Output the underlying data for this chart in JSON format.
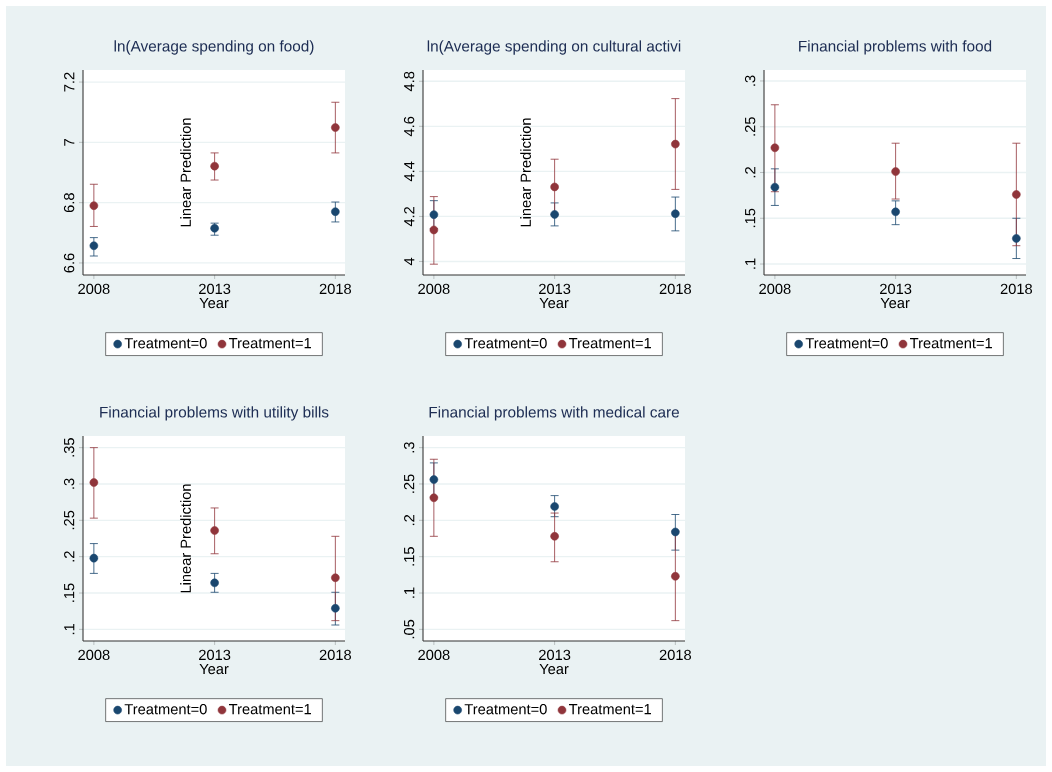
{
  "chart_data": [
    {
      "type": "scatter",
      "title": "ln(Average spending on food)",
      "xlabel": "Year",
      "ylabel": "Linear Prediction",
      "x": [
        2008,
        2013,
        2018
      ],
      "xlim": [
        2007.55,
        2018.4
      ],
      "xticks": [
        2008,
        2013,
        2018
      ],
      "ylim": [
        6.56,
        7.24
      ],
      "yticks": [
        6.6,
        6.8,
        7,
        7.2
      ],
      "grid": "y",
      "legend": "bottom",
      "marker": "circle",
      "series": [
        {
          "name": "Treatment=0",
          "color": "#1a476f",
          "values": [
            6.657,
            6.715,
            6.77
          ],
          "errors": [
            [
              6.623,
              6.684
            ],
            [
              6.692,
              6.732
            ],
            [
              6.736,
              6.802
            ]
          ]
        },
        {
          "name": "Treatment=1",
          "color": "#90353b",
          "values": [
            6.79,
            6.921,
            7.049
          ],
          "errors": [
            [
              6.721,
              6.861
            ],
            [
              6.875,
              6.965
            ],
            [
              6.965,
              7.133
            ]
          ]
        }
      ]
    },
    {
      "type": "scatter",
      "title": "ln(Average spending on cultural activi",
      "xlabel": "Year",
      "ylabel": "Linear Prediction",
      "x": [
        2008,
        2013,
        2018
      ],
      "xlim": [
        2007.55,
        2018.4
      ],
      "xticks": [
        2008,
        2013,
        2018
      ],
      "ylim": [
        3.94,
        4.85
      ],
      "yticks": [
        4,
        4.2,
        4.4,
        4.6,
        4.8
      ],
      "grid": "y",
      "legend": "bottom",
      "marker": "circle",
      "series": [
        {
          "name": "Treatment=0",
          "color": "#1a476f",
          "values": [
            4.208,
            4.209,
            4.212
          ],
          "errors": [
            [
              4.146,
              4.27
            ],
            [
              4.158,
              4.26
            ],
            [
              4.136,
              4.286
            ]
          ]
        },
        {
          "name": "Treatment=1",
          "color": "#90353b",
          "values": [
            4.14,
            4.331,
            4.521
          ],
          "errors": [
            [
              3.988,
              4.288
            ],
            [
              4.208,
              4.454
            ],
            [
              4.32,
              4.723
            ]
          ]
        }
      ]
    },
    {
      "type": "scatter",
      "title": "Financial problems with food",
      "xlabel": "Year",
      "x": [
        2008,
        2013,
        2018
      ],
      "xlim": [
        2007.55,
        2018.4
      ],
      "xticks": [
        2008,
        2013,
        2018
      ],
      "ylim": [
        0.088,
        0.312
      ],
      "yticks": [
        {
          "value": 0.1,
          "label": ".1"
        },
        {
          "value": 0.15,
          "label": ".15"
        },
        {
          "value": 0.2,
          "label": ".2"
        },
        {
          "value": 0.25,
          "label": ".25"
        },
        {
          "value": 0.3,
          "label": ".3"
        }
      ],
      "grid": "y",
      "legend": "bottom",
      "marker": "circle",
      "series": [
        {
          "name": "Treatment=0",
          "color": "#1a476f",
          "values": [
            0.184,
            0.157,
            0.128
          ],
          "errors": [
            [
              0.164,
              0.204
            ],
            [
              0.143,
              0.169
            ],
            [
              0.106,
              0.15
            ]
          ]
        },
        {
          "name": "Treatment=1",
          "color": "#90353b",
          "values": [
            0.227,
            0.201,
            0.176
          ],
          "errors": [
            [
              0.179,
              0.274
            ],
            [
              0.171,
              0.232
            ],
            [
              0.12,
              0.232
            ]
          ]
        }
      ]
    },
    {
      "type": "scatter",
      "title": "Financial problems with utility bills",
      "xlabel": "Year",
      "ylabel": "Linear Prediction",
      "x": [
        2008,
        2013,
        2018
      ],
      "xlim": [
        2007.55,
        2018.4
      ],
      "xticks": [
        2008,
        2013,
        2018
      ],
      "ylim": [
        0.084,
        0.366
      ],
      "yticks": [
        {
          "value": 0.1,
          "label": ".1"
        },
        {
          "value": 0.15,
          "label": ".15"
        },
        {
          "value": 0.2,
          "label": ".2"
        },
        {
          "value": 0.25,
          "label": ".25"
        },
        {
          "value": 0.3,
          "label": ".3"
        },
        {
          "value": 0.35,
          "label": ".35"
        }
      ],
      "grid": "y",
      "legend": "bottom",
      "marker": "circle",
      "series": [
        {
          "name": "Treatment=0",
          "color": "#1a476f",
          "values": [
            0.198,
            0.164,
            0.129
          ],
          "errors": [
            [
              0.177,
              0.218
            ],
            [
              0.151,
              0.177
            ],
            [
              0.106,
              0.151
            ]
          ]
        },
        {
          "name": "Treatment=1",
          "color": "#90353b",
          "values": [
            0.302,
            0.236,
            0.171
          ],
          "errors": [
            [
              0.253,
              0.35
            ],
            [
              0.204,
              0.267
            ],
            [
              0.112,
              0.228
            ]
          ]
        }
      ]
    },
    {
      "type": "scatter",
      "title": "Financial problems with medical care",
      "xlabel": "Year",
      "x": [
        2008,
        2013,
        2018
      ],
      "xlim": [
        2007.55,
        2018.4
      ],
      "xticks": [
        2008,
        2013,
        2018
      ],
      "ylim": [
        0.034,
        0.316
      ],
      "yticks": [
        {
          "value": 0.05,
          "label": ".05"
        },
        {
          "value": 0.1,
          "label": ".1"
        },
        {
          "value": 0.15,
          "label": ".15"
        },
        {
          "value": 0.2,
          "label": ".2"
        },
        {
          "value": 0.25,
          "label": ".25"
        },
        {
          "value": 0.3,
          "label": ".3"
        }
      ],
      "grid": "y",
      "legend": "bottom",
      "marker": "circle",
      "series": [
        {
          "name": "Treatment=0",
          "color": "#1a476f",
          "values": [
            0.256,
            0.219,
            0.184
          ],
          "errors": [
            [
              0.232,
              0.279
            ],
            [
              0.205,
              0.234
            ],
            [
              0.159,
              0.208
            ]
          ]
        },
        {
          "name": "Treatment=1",
          "color": "#90353b",
          "values": [
            0.231,
            0.178,
            0.123
          ],
          "errors": [
            [
              0.178,
              0.284
            ],
            [
              0.143,
              0.21
            ],
            [
              0.062,
              0.185
            ]
          ]
        }
      ]
    }
  ]
}
